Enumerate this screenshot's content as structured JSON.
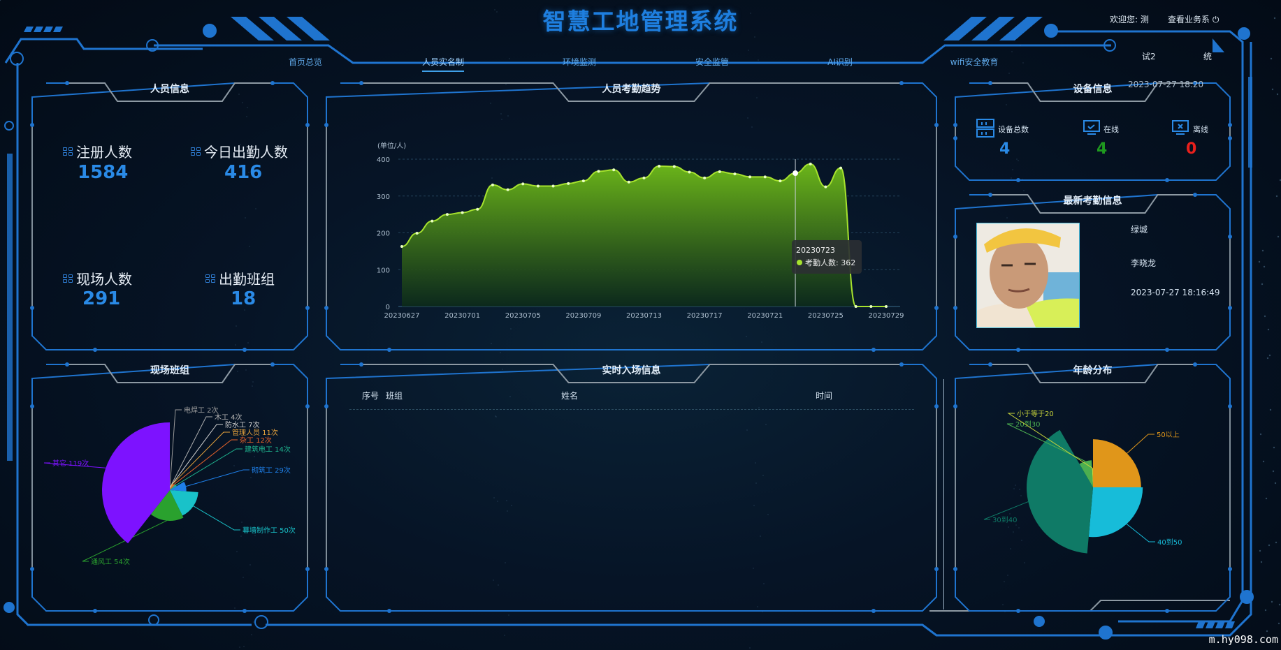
{
  "header": {
    "title": "智慧工地管理系统",
    "welcome": "欢迎您: 测",
    "business_link": "查看业务系",
    "extra_left": "试2",
    "extra_right": "统"
  },
  "nav": [
    {
      "label": "首页总览",
      "active": false
    },
    {
      "label": "人员实名制",
      "active": true
    },
    {
      "label": "环境监测",
      "active": false
    },
    {
      "label": "安全监管",
      "active": false
    },
    {
      "label": "AI识别",
      "active": false
    },
    {
      "label": "wifi安全教育",
      "active": false
    }
  ],
  "personnel": {
    "title": "人员信息",
    "stats": [
      {
        "label": "注册人数",
        "value": "1584"
      },
      {
        "label": "今日出勤人数",
        "value": "416"
      },
      {
        "label": "现场人数",
        "value": "291"
      },
      {
        "label": "出勤班组",
        "value": "18"
      }
    ]
  },
  "device": {
    "title": "设备信息",
    "datetime": "2023-07-27 18:20",
    "items": [
      {
        "label": "设备总数",
        "value": "4",
        "color": "#2a8ae6",
        "icon": "server-icon"
      },
      {
        "label": "在线",
        "value": "4",
        "color": "#1f9a1f",
        "icon": "monitor-check-icon"
      },
      {
        "label": "离线",
        "value": "0",
        "color": "#e8201c",
        "icon": "monitor-x-icon"
      }
    ]
  },
  "latest": {
    "title": "最新考勤信息",
    "team": "绿城",
    "name": "李晓龙",
    "time": "2023-07-27 18:16:49"
  },
  "entry": {
    "title": "实时入场信息",
    "columns": [
      "序号",
      "班组",
      "姓名",
      "时间"
    ],
    "rows": []
  },
  "team_chart_title": "现场班组",
  "age_chart_title": "年龄分布",
  "trend_title": "人员考勤趋势",
  "watermark": "m.hy098.com",
  "chart_data": [
    {
      "type": "area",
      "title": "人员考勤趋势",
      "ylabel": "(单位/人)",
      "ylim": [
        0,
        400
      ],
      "yticks": [
        0,
        100,
        200,
        300,
        400
      ],
      "grid": true,
      "color": "#a6e22e",
      "x": [
        "20230627",
        "20230628",
        "20230629",
        "20230630",
        "20230701",
        "20230702",
        "20230703",
        "20230704",
        "20230705",
        "20230706",
        "20230707",
        "20230708",
        "20230709",
        "20230710",
        "20230711",
        "20230712",
        "20230713",
        "20230714",
        "20230715",
        "20230716",
        "20230717",
        "20230718",
        "20230719",
        "20230720",
        "20230721",
        "20230722",
        "20230723",
        "20230724",
        "20230725",
        "20230726",
        "20230727",
        "20230728",
        "20230729"
      ],
      "xtick_labels": [
        "20230627",
        "20230701",
        "20230705",
        "20230709",
        "20230713",
        "20230717",
        "20230721",
        "20230725",
        "20230729"
      ],
      "series": [
        {
          "name": "考勤人数",
          "values": [
            163,
            199,
            232,
            250,
            255,
            264,
            330,
            317,
            333,
            327,
            327,
            334,
            341,
            367,
            371,
            338,
            349,
            381,
            380,
            365,
            349,
            366,
            360,
            352,
            352,
            341,
            362,
            387,
            325,
            376,
            0,
            0,
            0
          ]
        }
      ],
      "tooltip": {
        "x": "20230723",
        "label": "考勤人数",
        "value": 362
      }
    },
    {
      "type": "pie",
      "rose": true,
      "title": "现场班组",
      "slices": [
        {
          "name": "电焊工",
          "value": 2,
          "color": "#9a9a9a"
        },
        {
          "name": "木工",
          "value": 4,
          "color": "#b0b0b0"
        },
        {
          "name": "防水工",
          "value": 7,
          "color": "#d0d0d0"
        },
        {
          "name": "管理人员",
          "value": 11,
          "color": "#e6a23c"
        },
        {
          "name": "杂工",
          "value": 12,
          "color": "#e8632a"
        },
        {
          "name": "建筑电工",
          "value": 14,
          "color": "#1fb58f"
        },
        {
          "name": "砌筑工",
          "value": 29,
          "color": "#1e7fe8"
        },
        {
          "name": "幕墙制作工",
          "value": 50,
          "color": "#19c2c9"
        },
        {
          "name": "通风工",
          "value": 54,
          "color": "#2aa12e"
        },
        {
          "name": "其它",
          "value": 119,
          "color": "#7d12ff"
        }
      ],
      "unit": "次"
    },
    {
      "type": "pie",
      "rose": true,
      "title": "年龄分布",
      "slices": [
        {
          "name": "50以上",
          "value": 90,
          "color": "#e0961a"
        },
        {
          "name": "40到50",
          "value": 95,
          "color": "#17bcd9"
        },
        {
          "name": "30到40",
          "value": 145,
          "color": "#0f7a66"
        },
        {
          "name": "20到30",
          "value": 27,
          "color": "#4caf50"
        },
        {
          "name": "小于等于20",
          "value": 3,
          "color": "#c8d43a"
        }
      ]
    }
  ]
}
